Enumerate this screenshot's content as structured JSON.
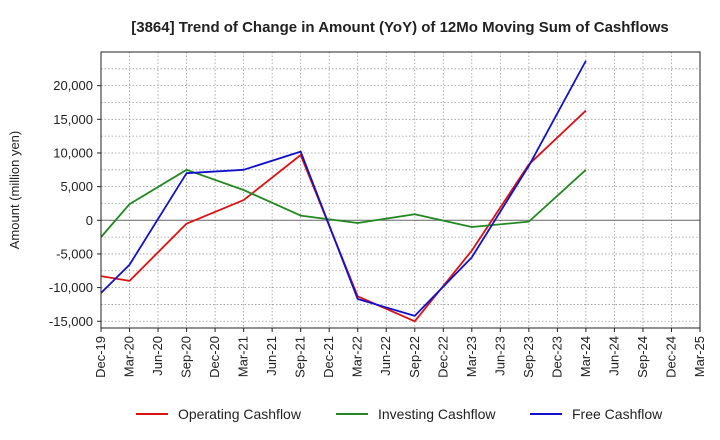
{
  "chart_data": {
    "type": "line",
    "title": "[3864]  Trend of Change in Amount (YoY) of 12Mo Moving Sum of Cashflows",
    "xlabel": "",
    "ylabel": "Amount (million yen)",
    "ylim": [
      -16000,
      25000
    ],
    "yticks": [
      -15000,
      -10000,
      -5000,
      0,
      5000,
      10000,
      15000,
      20000
    ],
    "ytick_labels": [
      "-15,000",
      "-10,000",
      "-5,000",
      "0",
      "5,000",
      "10,000",
      "15,000",
      "20,000"
    ],
    "categories": [
      "Dec-19",
      "Mar-20",
      "Jun-20",
      "Sep-20",
      "Dec-20",
      "Mar-21",
      "Jun-21",
      "Sep-21",
      "Dec-21",
      "Mar-22",
      "Jun-22",
      "Sep-22",
      "Dec-22",
      "Mar-23",
      "Jun-23",
      "Sep-23",
      "Dec-23",
      "Mar-24",
      "Jun-24",
      "Sep-24",
      "Dec-24",
      "Mar-25"
    ],
    "grid": true,
    "legend_position": "bottom",
    "series": [
      {
        "name": "Operating Cashflow",
        "color": "#dd1111",
        "values": [
          -8300,
          -9000,
          null,
          -500,
          null,
          3000,
          null,
          9700,
          null,
          -11300,
          null,
          -15000,
          null,
          -4500,
          null,
          8300,
          null,
          16300,
          null,
          null,
          null,
          null
        ]
      },
      {
        "name": "Investing Cashflow",
        "color": "#228822",
        "values": [
          -2500,
          2400,
          null,
          7500,
          null,
          4500,
          null,
          700,
          null,
          -400,
          null,
          900,
          null,
          -1000,
          null,
          -200,
          null,
          7500,
          null,
          null,
          null,
          null
        ]
      },
      {
        "name": "Free Cashflow",
        "color": "#1111cc",
        "values": [
          -10800,
          -6600,
          null,
          7000,
          null,
          7500,
          null,
          10200,
          null,
          -11700,
          null,
          -14200,
          null,
          -5500,
          null,
          8100,
          null,
          23700,
          null,
          null,
          null,
          null
        ]
      }
    ]
  }
}
